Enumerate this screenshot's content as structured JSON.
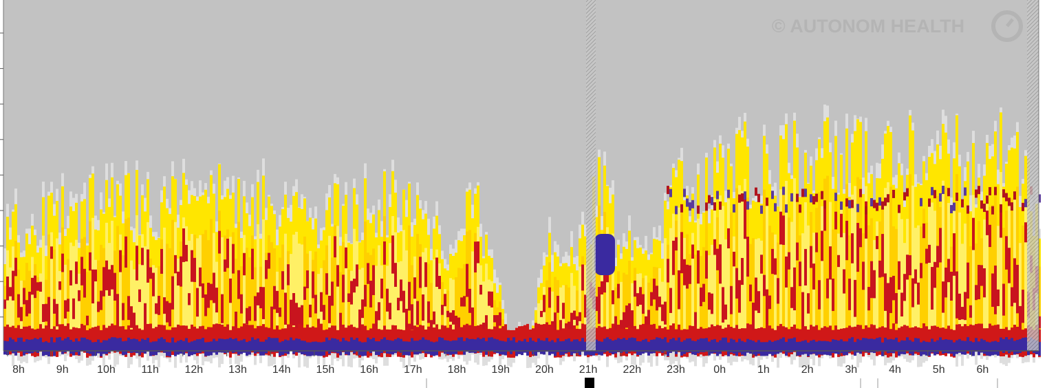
{
  "watermark": "© AUTONOM HEALTH",
  "x_axis": {
    "labels": [
      "8h",
      "9h",
      "10h",
      "11h",
      "12h",
      "13h",
      "14h",
      "15h",
      "16h",
      "17h",
      "18h",
      "19h",
      "20h",
      "21h",
      "22h",
      "23h",
      "0h",
      "1h",
      "2h",
      "3h",
      "4h",
      "5h",
      "6h"
    ]
  }
}
